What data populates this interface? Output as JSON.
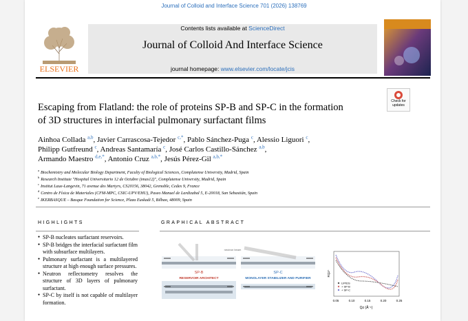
{
  "citation": "Journal of Colloid and Interface Science 701 (2026) 138769",
  "header": {
    "publisher": "ELSEVIER",
    "contents_prefix": "Contents lists available at",
    "contents_link": "ScienceDirect",
    "journal": "Journal of Colloid And Interface Science",
    "homepage_prefix": "journal homepage:",
    "homepage_link": "www.elsevier.com/locate/jcis"
  },
  "badge": {
    "line1": "Check for",
    "line2": "updates"
  },
  "title": {
    "lines": [
      "Escaping from Flatland: the role of proteins SP-B and SP-C in the formation",
      "of 3D structures in interfacial pulmonary surfactant films"
    ]
  },
  "authors": [
    {
      "name": "Ainhoa Collada",
      "sup": "a,b"
    },
    {
      "name": "Javier Carrascosa-Tejedor",
      "sup": "c,*"
    },
    {
      "name": "Pablo Sánchez-Puga",
      "sup": "c"
    },
    {
      "name": "Alessio Liguori",
      "sup": "c"
    },
    {
      "name": "Philipp Gutfreund",
      "sup": "c"
    },
    {
      "name": "Andreas Santamaría",
      "sup": "c"
    },
    {
      "name": "José Carlos Castillo-Sánchez",
      "sup": "a,b"
    },
    {
      "name": "Armando Maestro",
      "sup": "d,e,*"
    },
    {
      "name": "Antonio Cruz",
      "sup": "a,b,*"
    },
    {
      "name": "Jesús Pérez-Gil",
      "sup": "a,b,*"
    }
  ],
  "affiliations": [
    {
      "sup": "a",
      "text": "Biochemistry and Molecular Biology Department, Faculty of Biological Sciences, Complutense University, Madrid, Spain"
    },
    {
      "sup": "b",
      "text": "Research Institute \"Hospital Universitario 12 de Octubre (imas12)\", Complutense University, Madrid, Spain"
    },
    {
      "sup": "c",
      "text": "Institut Laue-Langevin, 71 avenue des Martyrs, CS20156, 38042, Grenoble, Cedex 9, France"
    },
    {
      "sup": "d",
      "text": "Centro de Física de Materiales (CFM-MPC, CSIC-UPV/EHU), Paseo Manuel de Lardizabal 5, E-20018, San Sebastián, Spain"
    },
    {
      "sup": "e",
      "text": "IKERBASQUE – Basque Foundation for Science, Plaza Euskadi 5, Bilbao, 48009, Spain"
    }
  ],
  "highlights": {
    "heading": "HIGHLIGHTS",
    "items": [
      "SP-B nucleates surfactant reservoirs.",
      "SP-B bridges the interfacial surfactant film with subsurface multilayers.",
      "Pulmonary surfactant is a multilayered structure at high enough surface pressures.",
      "Neutron reflectometry resolves the structure of 3D layers of pulmonary surfactant.",
      "SP-C by itself is not capable of multilayer formation."
    ]
  },
  "graphical_abstract": {
    "heading": "GRAPHICAL ABSTRACT",
    "beam": "neutron beam",
    "panels": [
      {
        "protein": "SP-B",
        "role": "RESERVOIR ARCHITECT"
      },
      {
        "protein": "SP-C",
        "role": "MONOLAYER STABILIZER AND PURIFIER"
      }
    ],
    "plot": {
      "xlabel": "Qz (Å⁻¹)",
      "ylabel": "RQz⁴",
      "xticks": [
        "0.05",
        "0.10",
        "0.15",
        "0.20",
        "0.25"
      ],
      "legend": [
        "LIPIDS",
        "+ SP-B",
        "+ SP-C"
      ]
    }
  }
}
